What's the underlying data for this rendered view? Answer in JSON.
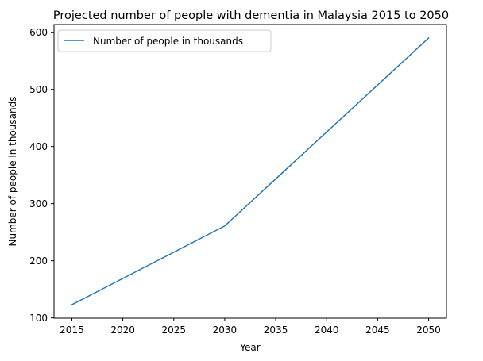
{
  "chart_data": {
    "type": "line",
    "title": "Projected number of people with dementia in Malaysia 2015 to 2050",
    "xlabel": "Year",
    "ylabel": "Number of people in thousands",
    "x": [
      2015,
      2030,
      2050
    ],
    "series": [
      {
        "name": "Number of people in thousands",
        "values": [
          123,
          261,
          590
        ],
        "color": "#1f77b4"
      }
    ],
    "xticks": [
      2015,
      2020,
      2025,
      2030,
      2035,
      2040,
      2045,
      2050
    ],
    "yticks": [
      100,
      200,
      300,
      400,
      500,
      600
    ],
    "xlim": [
      2013.25,
      2051.75
    ],
    "ylim": [
      99.5,
      613.5
    ],
    "grid": false,
    "legend": "top-left"
  }
}
